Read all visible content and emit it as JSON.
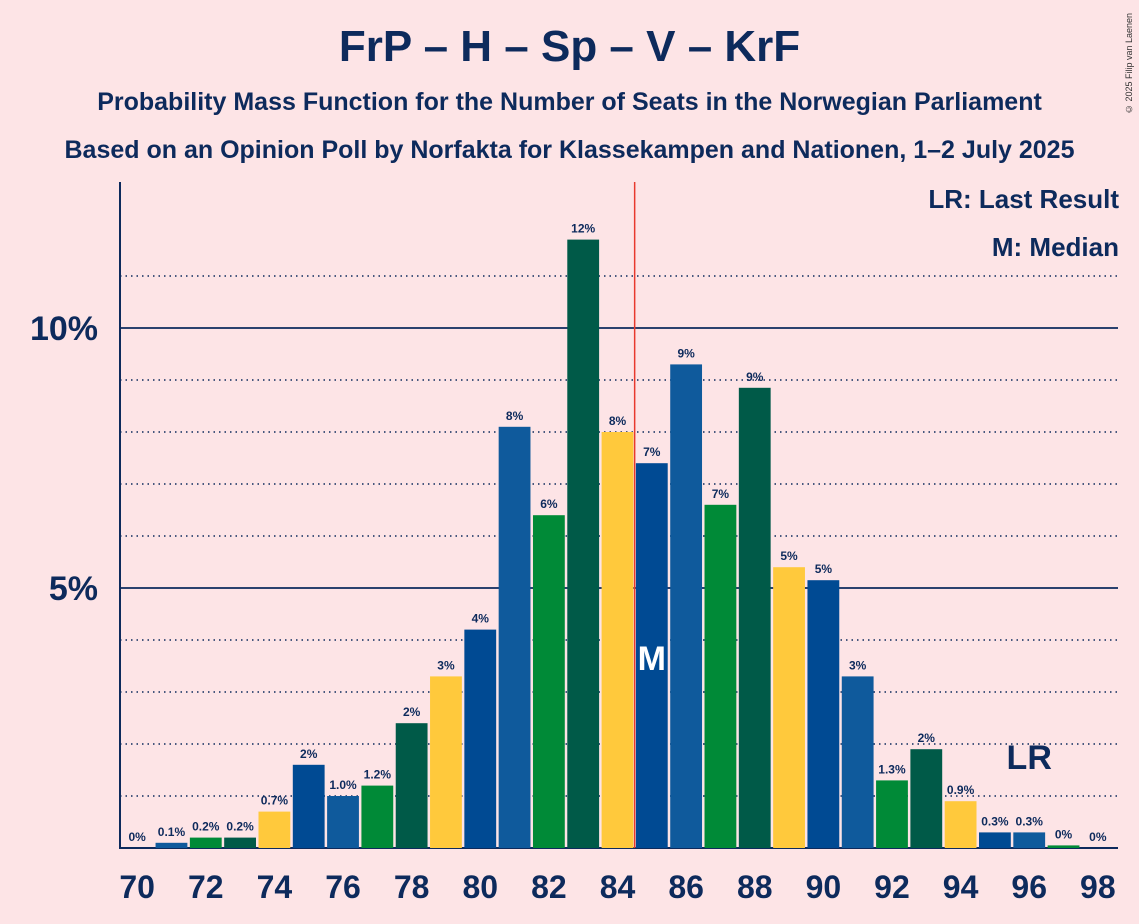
{
  "chart_data": {
    "type": "bar",
    "title": "FrP – H – Sp – V – KrF",
    "subtitle1": "Probability Mass Function for the Number of Seats in the Norwegian Parliament",
    "subtitle2": "Based on an Opinion Poll by Norfakta for Klassekampen and Nationen, 1–2 July 2025",
    "copyright": "© 2025 Filip van Laenen",
    "legend": {
      "lr": "LR: Last Result",
      "m": "M: Median"
    },
    "ylim": [
      0,
      12.75
    ],
    "y_tick_labels": [
      {
        "value": 5,
        "label": "5%"
      },
      {
        "value": 10,
        "label": "10%"
      }
    ],
    "x_tick_labels": [
      "70",
      "72",
      "74",
      "76",
      "78",
      "80",
      "82",
      "84",
      "86",
      "88",
      "90",
      "92",
      "94",
      "96",
      "98"
    ],
    "categories": [
      70,
      71,
      72,
      73,
      74,
      75,
      76,
      77,
      78,
      79,
      80,
      81,
      82,
      83,
      84,
      85,
      86,
      87,
      88,
      89,
      90,
      91,
      92,
      93,
      94,
      95,
      96,
      97,
      98
    ],
    "values": [
      0,
      0.1,
      0.2,
      0.2,
      0.7,
      1.6,
      1.0,
      1.2,
      2.4,
      3.3,
      4.2,
      8.1,
      6.4,
      11.7,
      8.0,
      7.4,
      9.3,
      6.6,
      8.85,
      5.4,
      5.15,
      3.3,
      1.3,
      1.9,
      0.9,
      0.3,
      0.3,
      0.05,
      0
    ],
    "labels": [
      "0%",
      "0.1%",
      "0.2%",
      "0.2%",
      "0.7%",
      "2%",
      "1.0%",
      "1.2%",
      "2%",
      "3%",
      "4%",
      "8%",
      "6%",
      "12%",
      "8%",
      "7%",
      "9%",
      "7%",
      "9%",
      "5%",
      "5%",
      "3%",
      "1.3%",
      "2%",
      "0.9%",
      "0.3%",
      "0.3%",
      "0%",
      "0%"
    ],
    "majority_line": 84.5,
    "median": 85,
    "median_label": "M",
    "last_result": 96,
    "last_result_label": "LR",
    "colors": {
      "frp_blue": "#004a93",
      "h_blue": "#0f5a9c",
      "sp_green": "#008a37",
      "v_darkgreen": "#005a48",
      "krf_yellow": "#ffc93c",
      "majority": "#e8392e",
      "axis": "#0d2a5c",
      "background": "#fde4e6"
    }
  }
}
